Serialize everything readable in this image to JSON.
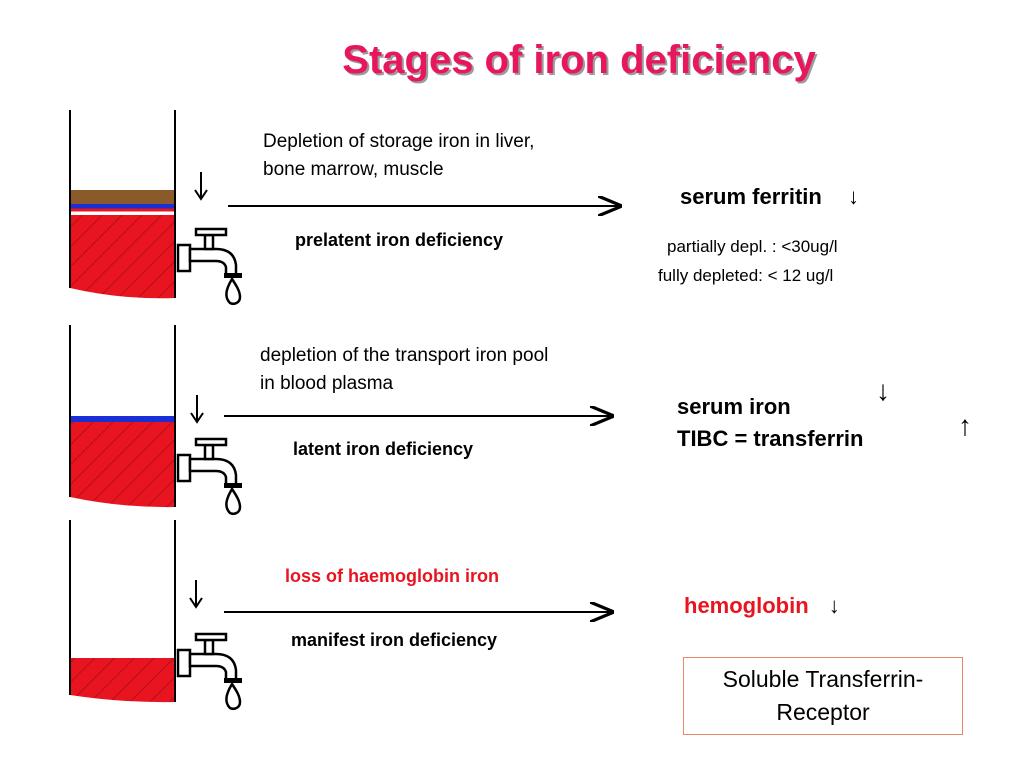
{
  "title": "Stages of iron deficiency",
  "colors": {
    "title": "#e8175d",
    "iron_fill": "#e8141f",
    "storage_layer": "#8b5a2b",
    "transport_layer": "#1a2fd6",
    "highlight_red": "#e8141f",
    "receptor_border": "#e88a6a"
  },
  "stages": [
    {
      "description_lines": [
        "Depletion of storage iron in liver,",
        "bone marrow, muscle"
      ],
      "stage_name": "prelatent iron deficiency",
      "result": {
        "main": "serum ferritin",
        "main_arrow": "↓",
        "sub_lines": [
          "partially depl. : <30ug/l",
          "fully depleted: < 12 ug/l"
        ]
      }
    },
    {
      "description_lines": [
        "depletion of the transport iron pool",
        "in blood plasma"
      ],
      "stage_name": "latent iron deficiency",
      "result": {
        "main_lines": [
          "serum iron",
          "TIBC = transferrin"
        ],
        "arrows": [
          "↓",
          "↑"
        ]
      }
    },
    {
      "description_lines": [
        "loss of haemoglobin iron"
      ],
      "stage_name": "manifest iron deficiency",
      "result": {
        "main": "hemoglobin",
        "main_arrow": "↓"
      }
    }
  ],
  "receptor_box": {
    "lines": [
      "Soluble Transferrin-",
      "Receptor"
    ]
  }
}
